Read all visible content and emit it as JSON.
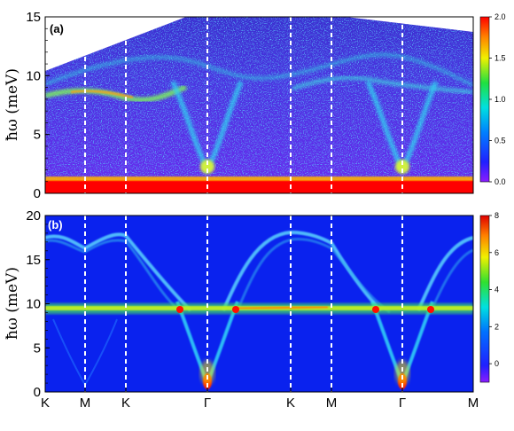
{
  "chart_data": [
    {
      "type": "heatmap",
      "panel_label": "(a)",
      "ylabel": "ħω (meV)",
      "ylim": [
        0,
        15
      ],
      "yticks": [
        "0",
        "5",
        "10",
        "15"
      ],
      "colorbar": {
        "min": 0.0,
        "max": 2.0,
        "ticks": [
          "0.0",
          "0.5",
          "1.0",
          "1.5",
          "2.0"
        ]
      },
      "high_symmetry_points": [
        "K",
        "M",
        "K",
        "Γ",
        "K",
        "M",
        "Γ",
        "M"
      ],
      "features": {
        "elastic_line_energy": 0.8,
        "flat_band_energy_near_K": 8.0,
        "upper_band_energy": 11.5,
        "gamma_cone_minimum": 1.0
      }
    },
    {
      "type": "heatmap",
      "panel_label": "(b)",
      "ylabel": "ħω (meV)",
      "ylim": [
        0,
        20
      ],
      "yticks": [
        "0",
        "5",
        "10",
        "15",
        "20"
      ],
      "colorbar": {
        "min": -1,
        "max": 8,
        "ticks": [
          "0",
          "2",
          "4",
          "6",
          "8"
        ]
      },
      "high_symmetry_points": [
        "K",
        "M",
        "K",
        "Γ",
        "K",
        "M",
        "Γ",
        "M"
      ],
      "features": {
        "flat_band_energy": 9.6,
        "top_band_energy_at_K": 18.0,
        "top_band_energy_at_M": 16.5,
        "gamma_cone_minimum": 0.5
      }
    }
  ]
}
